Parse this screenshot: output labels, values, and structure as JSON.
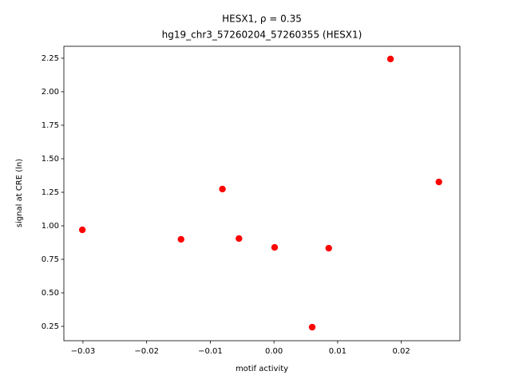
{
  "chart_data": {
    "type": "scatter",
    "title": "HESX1, ρ = 0.35",
    "subtitle": "hg19_chr3_57260204_57260355 (HESX1)",
    "x_label": "motif activity",
    "y_label": "signal at CRE (ln)",
    "color": "#ff0000",
    "x": [
      -0.0301,
      -0.0146,
      -0.0081,
      -0.0055,
      0.0001,
      0.006,
      0.0086,
      0.0183,
      0.0259
    ],
    "values": [
      0.97,
      0.899,
      1.274,
      0.905,
      0.839,
      0.244,
      0.833,
      2.244,
      1.327
    ],
    "xlim": [
      -0.033,
      0.0292
    ],
    "ylim": [
      0.143,
      2.339
    ],
    "xticks": [
      {
        "value": -0.03,
        "label": "−0.03"
      },
      {
        "value": -0.02,
        "label": "−0.02"
      },
      {
        "value": -0.01,
        "label": "−0.01"
      },
      {
        "value": 0,
        "label": "0.00"
      },
      0.01,
      0.02
    ],
    "yticks": [
      0.25,
      {
        "value": 0.5,
        "label": "0.50"
      },
      0.75,
      {
        "value": 1,
        "label": "1.00"
      },
      1.25,
      {
        "value": 1.5,
        "label": "1.50"
      },
      1.75,
      {
        "value": 2,
        "label": "2.00"
      },
      2.25
    ]
  }
}
